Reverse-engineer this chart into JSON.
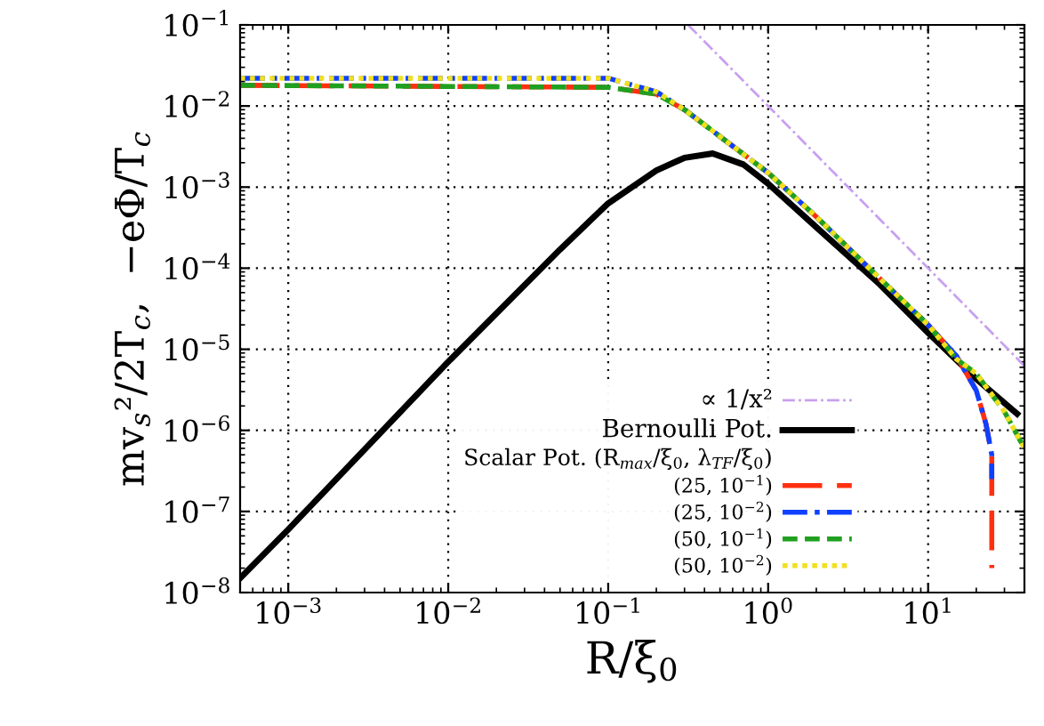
{
  "chart_data": {
    "type": "line",
    "xlabel": "R/ξ$_{0}$",
    "ylabel": "mv$_{s}$²/2T$_{c}$,  −eΦ/T$_{c}$",
    "legend_title": "Scalar Pot. (R$_{max}$/ξ$_{0}$, λ$_{TF}$/ξ$_{0}$)",
    "log": "xy",
    "grid": true,
    "legend": "bottom right",
    "xlim": [
      0.0005,
      40
    ],
    "ylim": [
      1e-08,
      0.1
    ],
    "xticks": [
      {
        "value": 0.001,
        "label": "10$^{−3}$"
      },
      {
        "value": 0.01,
        "label": "10$^{−2}$"
      },
      {
        "value": 0.1,
        "label": "10$^{−1}$"
      },
      {
        "value": 1,
        "label": "10$^{0}$"
      },
      {
        "value": 10,
        "label": "10$^{1}$"
      }
    ],
    "yticks": [
      {
        "value": 1e-08,
        "label": "10$^{−8}$"
      },
      {
        "value": 1e-07,
        "label": "10$^{−7}$"
      },
      {
        "value": 1e-06,
        "label": "10$^{−6}$"
      },
      {
        "value": 1e-05,
        "label": "10$^{−5}$"
      },
      {
        "value": 0.0001,
        "label": "10$^{−4}$"
      },
      {
        "value": 0.001,
        "label": "10$^{−3}$"
      },
      {
        "value": 0.01,
        "label": "10$^{−2}$"
      },
      {
        "value": 0.1,
        "label": "10$^{−1}$"
      }
    ],
    "series": [
      {
        "name": "∝ 1/x²",
        "color": "#c8a0f0",
        "line_style": "dashdot",
        "x": [
          0.316,
          40
        ],
        "values": [
          0.1,
          6.25e-06
        ]
      },
      {
        "name": "Bernoulli Pot.",
        "color": "#000000",
        "line_style": "solid",
        "x": [
          0.0005,
          0.001,
          0.01,
          0.05,
          0.1,
          0.2,
          0.3,
          0.45,
          0.7,
          1,
          2,
          5,
          10,
          20,
          36
        ],
        "values": [
          1.5e-08,
          6e-08,
          7e-06,
          0.00017,
          0.00063,
          0.0016,
          0.0023,
          0.0026,
          0.0019,
          0.0011,
          0.00032,
          6.3e-05,
          1.6e-05,
          4.3e-06,
          1.6e-06
        ]
      },
      {
        "name": "(25, 10$^{−1}$)",
        "color": "#ff3010",
        "line_style": "longdash",
        "x": [
          0.0005,
          0.1,
          0.2,
          0.3,
          0.5,
          1,
          2,
          5,
          10,
          15,
          20,
          23,
          25,
          25
        ],
        "values": [
          0.018,
          0.017,
          0.014,
          0.009,
          0.0042,
          0.0015,
          0.00043,
          7.4e-05,
          2e-05,
          8.3e-06,
          3.1e-06,
          1.2e-06,
          5e-07,
          2e-08
        ]
      },
      {
        "name": "(25, 10$^{−2}$)",
        "color": "#1040ff",
        "line_style": "dashdot",
        "x": [
          0.0005,
          0.1,
          0.2,
          0.3,
          0.5,
          1,
          2,
          5,
          10,
          15,
          20,
          23,
          25,
          25
        ],
        "values": [
          0.022,
          0.022,
          0.015,
          0.009,
          0.0042,
          0.0015,
          0.00043,
          7.4e-05,
          2e-05,
          8.3e-06,
          3.1e-06,
          1.2e-06,
          5e-07,
          2.5e-07
        ]
      },
      {
        "name": "(50, 10$^{−1}$)",
        "color": "#20a020",
        "line_style": "dashed",
        "x": [
          0.0005,
          0.1,
          0.2,
          0.3,
          0.5,
          1,
          2,
          5,
          10,
          15,
          20,
          30,
          40
        ],
        "values": [
          0.018,
          0.017,
          0.014,
          0.009,
          0.0042,
          0.0015,
          0.00043,
          7.4e-05,
          2e-05,
          7.6e-06,
          5e-06,
          1.7e-06,
          6e-07
        ]
      },
      {
        "name": "(50, 10$^{−2}$)",
        "color": "#f0e020",
        "line_style": "dotted",
        "x": [
          0.0005,
          0.1,
          0.2,
          0.3,
          0.5,
          1,
          2,
          5,
          10,
          15,
          20,
          30,
          40
        ],
        "values": [
          0.022,
          0.022,
          0.015,
          0.009,
          0.0042,
          0.0015,
          0.00043,
          7.4e-05,
          2e-05,
          7.6e-06,
          5e-06,
          1.7e-06,
          6e-07
        ]
      }
    ]
  }
}
